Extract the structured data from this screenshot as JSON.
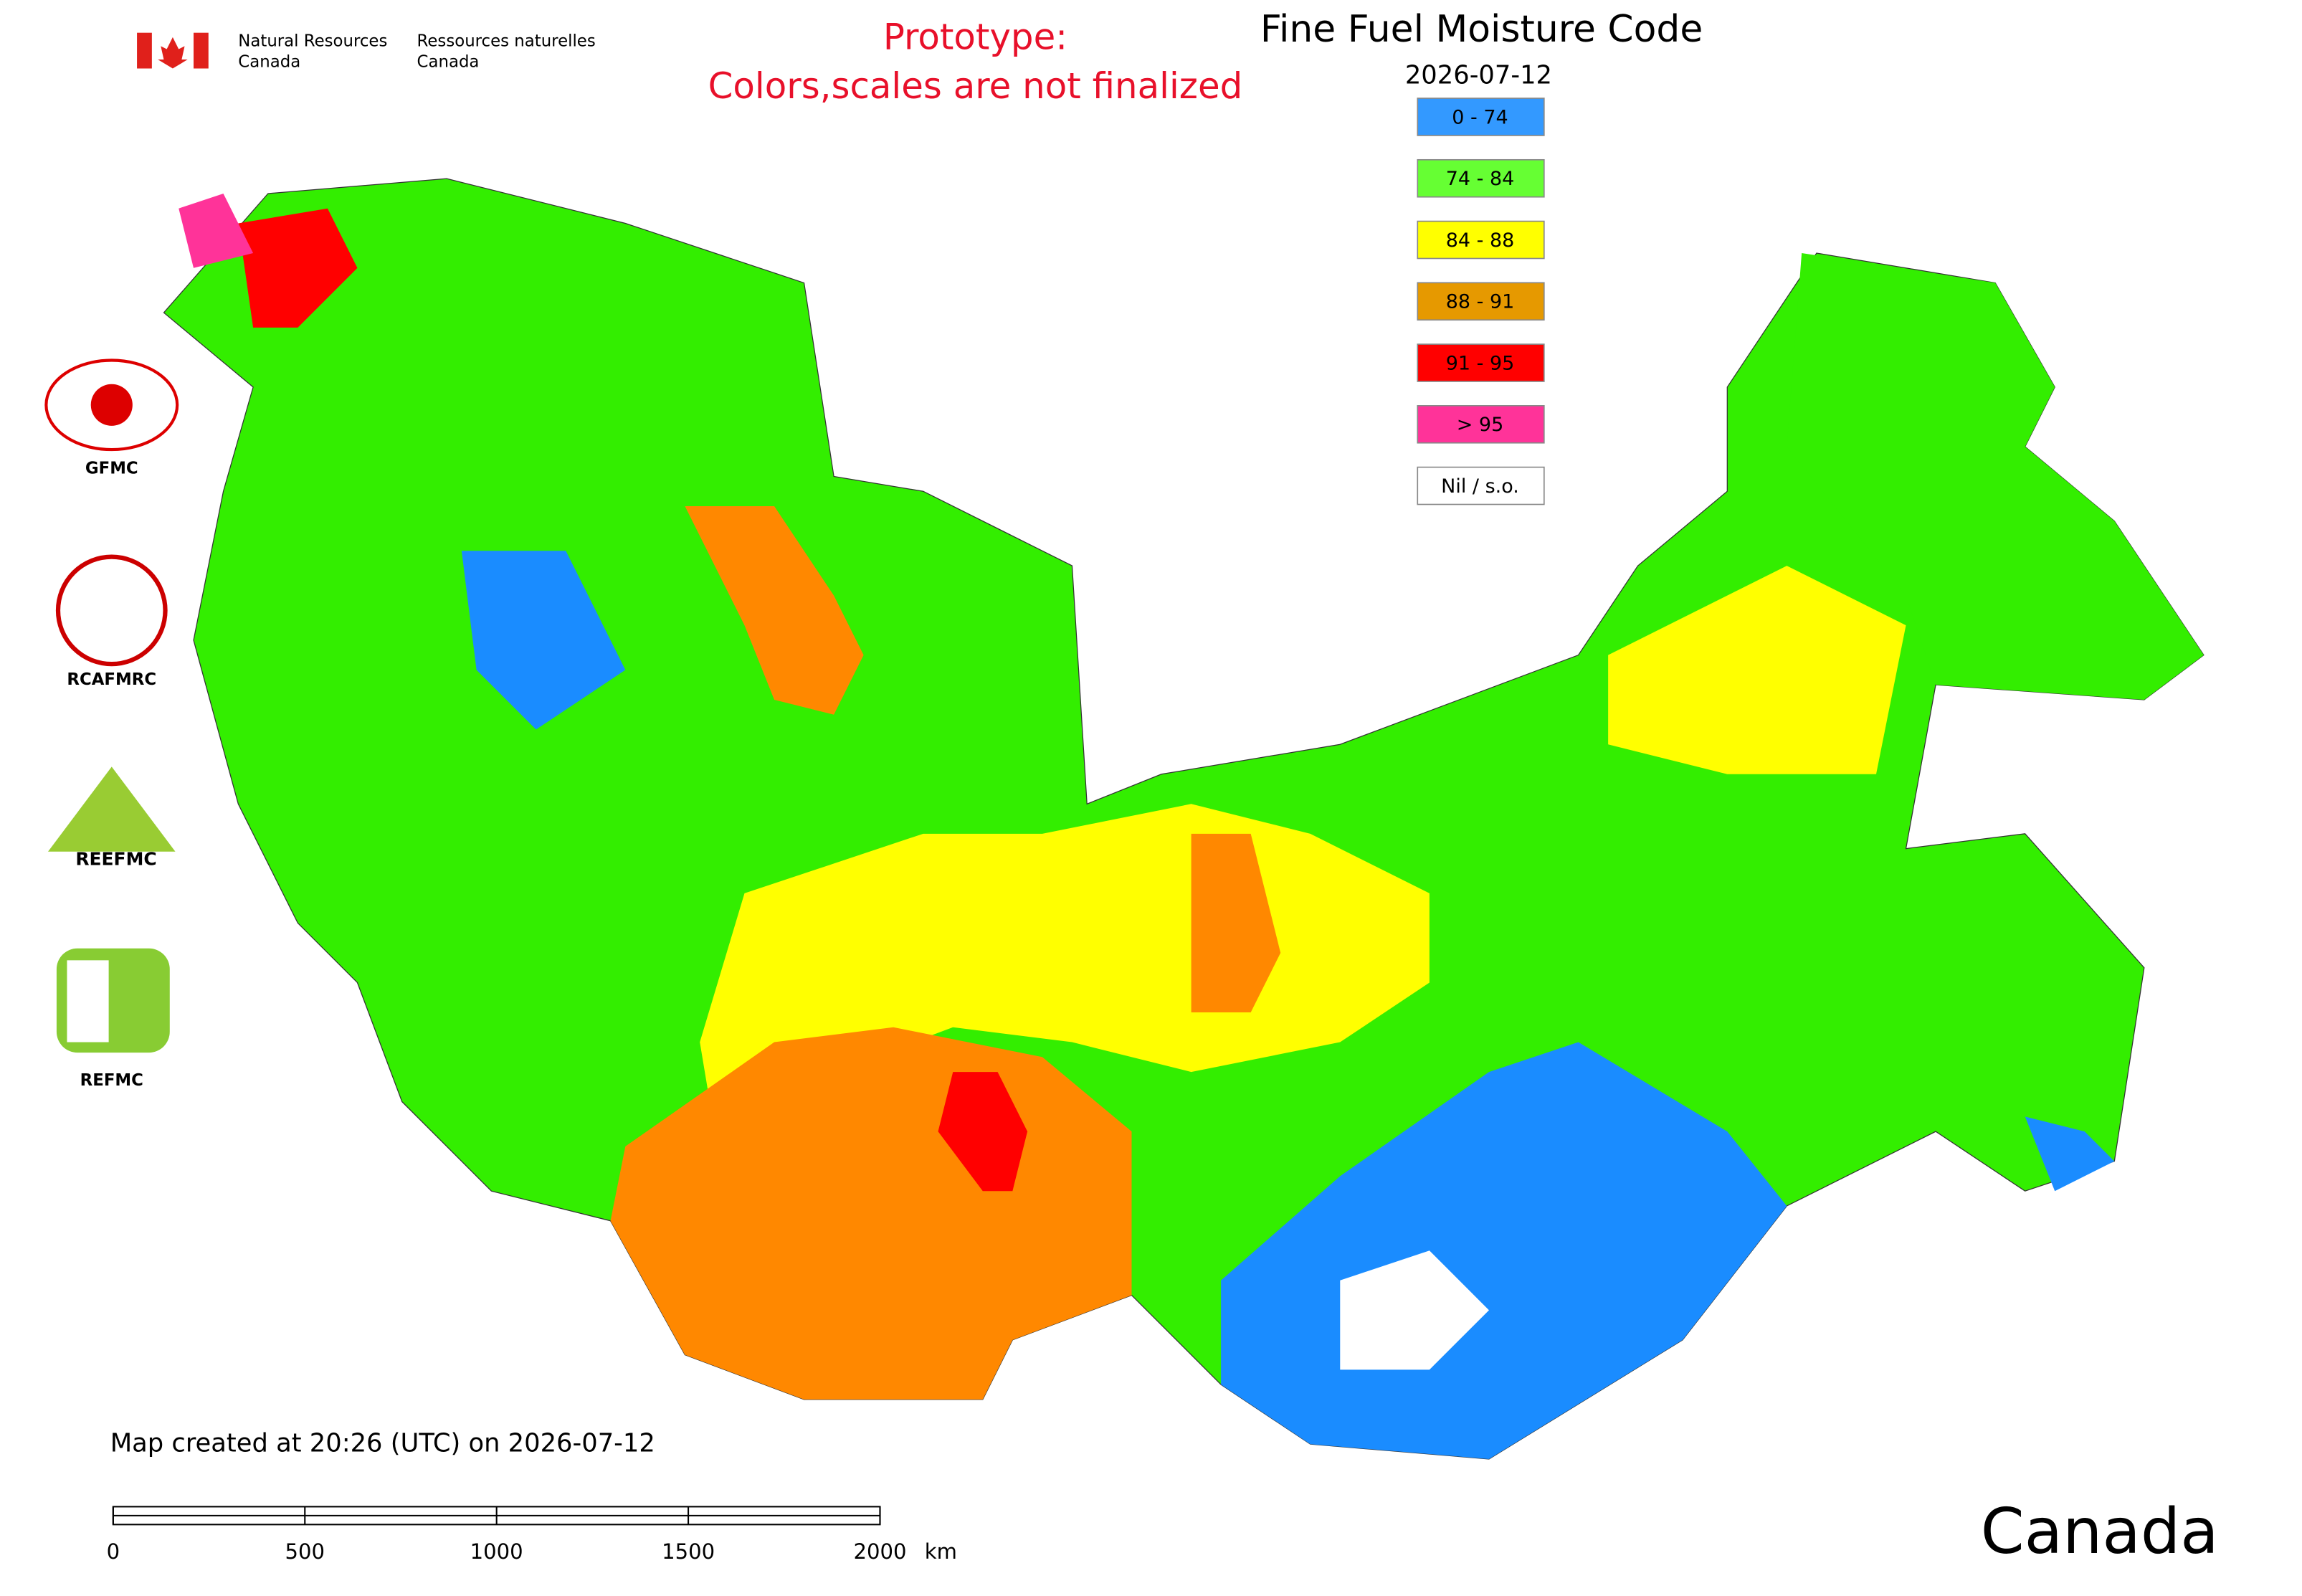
{
  "header": {
    "agency_en": [
      "Natural Resources",
      "Canada"
    ],
    "agency_fr": [
      "Ressources naturelles",
      "Canada"
    ]
  },
  "notice": [
    "Prototype:",
    "Colors,scales are not finalized"
  ],
  "title": "Fine Fuel Moisture Code",
  "date": "2026-07-12",
  "legend": [
    {
      "label": "0 - 74",
      "color": "#3399ff"
    },
    {
      "label": "74 - 84",
      "color": "#66ff33"
    },
    {
      "label": "84 - 88",
      "color": "#ffff00"
    },
    {
      "label": "88 - 91",
      "color": "#e69900"
    },
    {
      "label": "91 - 95",
      "color": "#ff0000"
    },
    {
      "label": "> 95",
      "color": "#ff3399"
    },
    {
      "label": "Nil / s.o.",
      "color": "#ffffff"
    }
  ],
  "logos": [
    "GFMC",
    "RCAFMRC",
    "REEFMC",
    "REFMC"
  ],
  "footer": "Map created at 20:26 (UTC) on 2026-07-12",
  "scale_bar": {
    "ticks": [
      0,
      500,
      1000,
      1500,
      2000
    ],
    "unit": "km"
  },
  "wordmark": "Canada"
}
